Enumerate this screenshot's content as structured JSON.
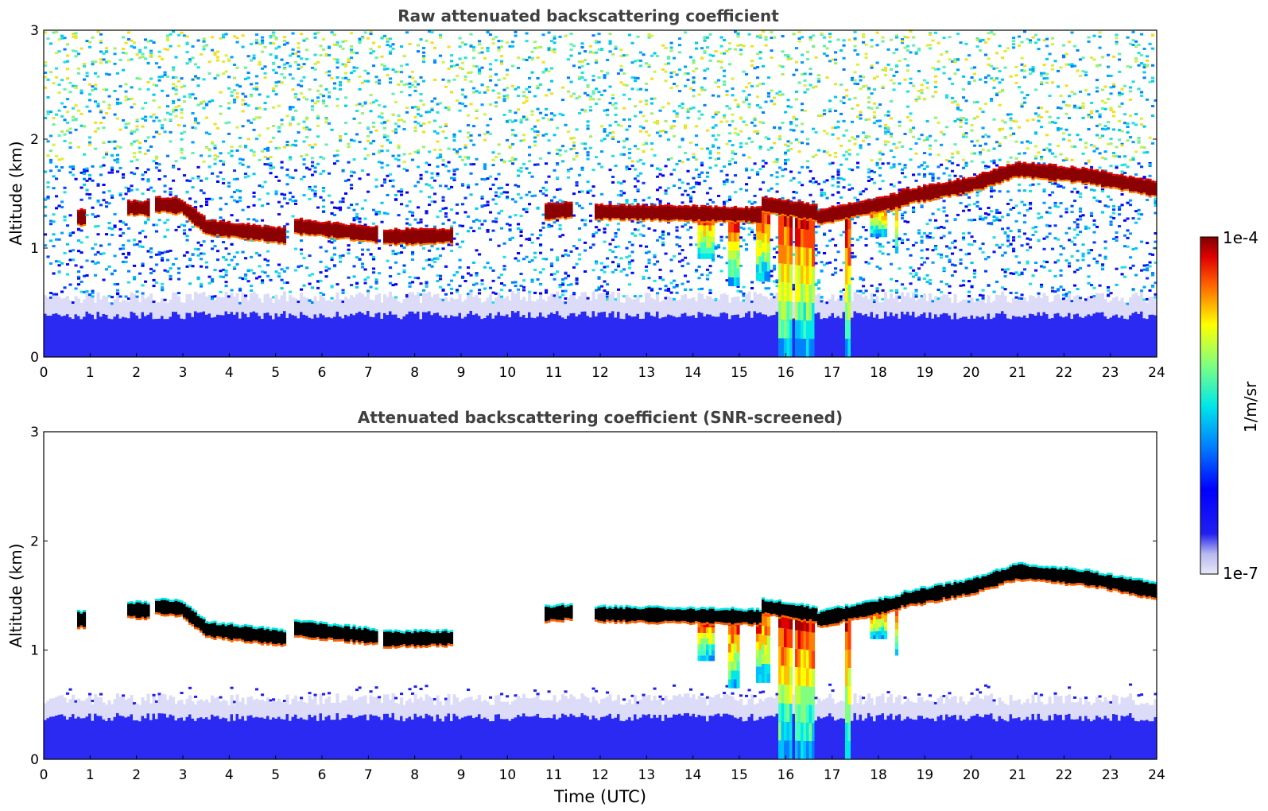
{
  "chart_data": [
    {
      "type": "heatmap",
      "title": "Raw attenuated backscattering coefficient",
      "xlabel": "",
      "ylabel": "Altitude (km)",
      "xlim": [
        0,
        24
      ],
      "ylim": [
        0,
        3
      ],
      "x_ticks": [
        "0",
        "1",
        "2",
        "3",
        "4",
        "5",
        "6",
        "7",
        "8",
        "9",
        "10",
        "11",
        "12",
        "13",
        "14",
        "15",
        "16",
        "17",
        "18",
        "19",
        "20",
        "21",
        "22",
        "23",
        "24"
      ],
      "y_ticks": [
        "0",
        "1",
        "2",
        "3"
      ],
      "screened": false,
      "cloud_layer": {
        "segments": [
          {
            "t0": 0.7,
            "t1": 0.9,
            "h0": 1.28,
            "h1": 1.28
          },
          {
            "t0": 1.8,
            "t1": 2.3,
            "h0": 1.37,
            "h1": 1.36
          },
          {
            "t0": 2.4,
            "t1": 3.0,
            "h0": 1.4,
            "h1": 1.38
          },
          {
            "t0": 3.0,
            "t1": 3.5,
            "h0": 1.37,
            "h1": 1.2
          },
          {
            "t0": 3.5,
            "t1": 5.2,
            "h0": 1.19,
            "h1": 1.11
          },
          {
            "t0": 5.4,
            "t1": 7.2,
            "h0": 1.2,
            "h1": 1.12
          },
          {
            "t0": 7.3,
            "t1": 8.8,
            "h0": 1.1,
            "h1": 1.11
          },
          {
            "t0": 10.8,
            "t1": 11.4,
            "h0": 1.33,
            "h1": 1.35
          },
          {
            "t0": 11.9,
            "t1": 13.5,
            "h0": 1.33,
            "h1": 1.32
          },
          {
            "t0": 13.5,
            "t1": 15.5,
            "h0": 1.32,
            "h1": 1.3
          },
          {
            "t0": 15.5,
            "t1": 16.7,
            "h0": 1.4,
            "h1": 1.32
          },
          {
            "t0": 16.7,
            "t1": 18.5,
            "h0": 1.28,
            "h1": 1.44
          },
          {
            "t0": 18.5,
            "t1": 20.0,
            "h0": 1.46,
            "h1": 1.58
          },
          {
            "t0": 20.0,
            "t1": 21.0,
            "h0": 1.58,
            "h1": 1.72
          },
          {
            "t0": 21.0,
            "t1": 22.5,
            "h0": 1.72,
            "h1": 1.66
          },
          {
            "t0": 22.5,
            "t1": 24.0,
            "h0": 1.66,
            "h1": 1.54
          }
        ],
        "thickness_km": 0.12
      },
      "fall_streaks": [
        {
          "t": 14.3,
          "base": 0.9,
          "width": 0.35
        },
        {
          "t": 14.9,
          "base": 0.65,
          "width": 0.25
        },
        {
          "t": 15.5,
          "base": 0.7,
          "width": 0.3
        },
        {
          "t": 16.0,
          "base": 0.0,
          "width": 0.3
        },
        {
          "t": 16.4,
          "base": 0.0,
          "width": 0.45
        },
        {
          "t": 17.35,
          "base": 0.0,
          "width": 0.15
        },
        {
          "t": 18.0,
          "base": 1.1,
          "width": 0.4
        },
        {
          "t": 18.4,
          "base": 0.95,
          "width": 0.1
        }
      ],
      "boundary_layer_top_km": 0.55
    },
    {
      "type": "heatmap",
      "title": "Attenuated backscattering coefficient (SNR-screened)",
      "xlabel": "Time (UTC)",
      "ylabel": "Altitude (km)",
      "xlim": [
        0,
        24
      ],
      "ylim": [
        0,
        3
      ],
      "x_ticks": [
        "0",
        "1",
        "2",
        "3",
        "4",
        "5",
        "6",
        "7",
        "8",
        "9",
        "10",
        "11",
        "12",
        "13",
        "14",
        "15",
        "16",
        "17",
        "18",
        "19",
        "20",
        "21",
        "22",
        "23",
        "24"
      ],
      "y_ticks": [
        "0",
        "1",
        "2",
        "3"
      ],
      "screened": true
    }
  ],
  "colorbar": {
    "label": "1/m/sr",
    "max_label": "1e-4",
    "min_label": "1e-7",
    "colormap": "jet-with-light-low-end",
    "scale": "log"
  }
}
